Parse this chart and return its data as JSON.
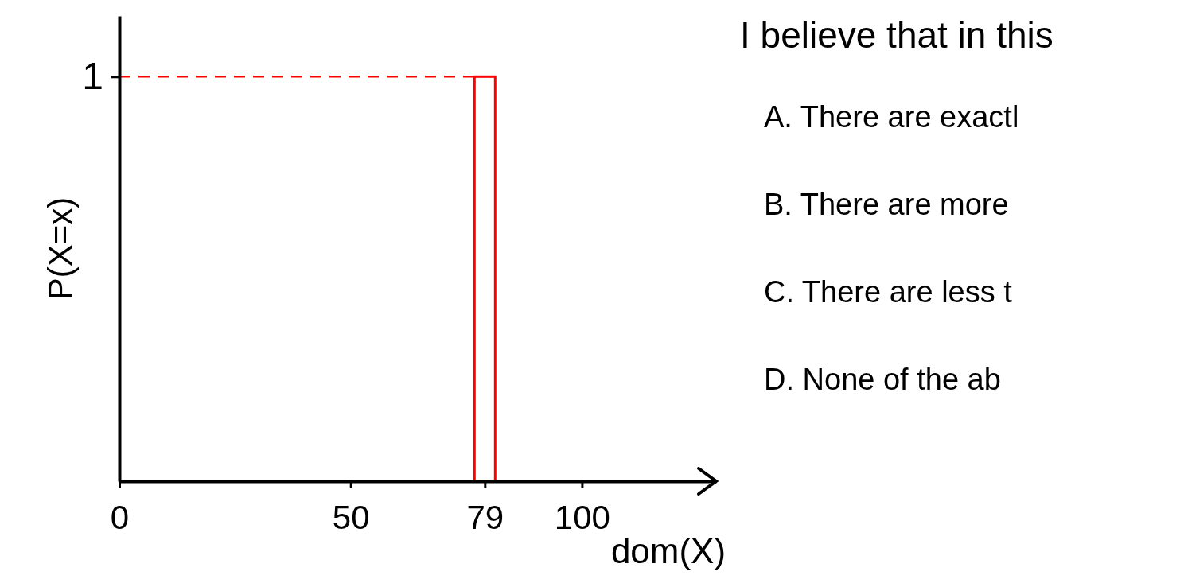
{
  "chart_data": {
    "type": "bar",
    "title": "I believe that in this",
    "annotations": [
      "A.  There are exactl",
      "B.   There are more",
      "C. There are less t",
      "D. None of the ab"
    ],
    "xlabel": "dom(X)",
    "ylabel": "P(X=x)",
    "x": [
      79
    ],
    "values": [
      1
    ],
    "color": "#ff0000",
    "xlim": [
      0,
      129
    ],
    "xticks": [
      0,
      50,
      79,
      100
    ],
    "ylim": [
      0,
      1.15
    ],
    "yticks": [
      1
    ],
    "ref_lines": [
      {
        "axis": "y",
        "value": 1,
        "color": "#ff0000",
        "line_style": "dashed"
      }
    ],
    "grid": false
  }
}
